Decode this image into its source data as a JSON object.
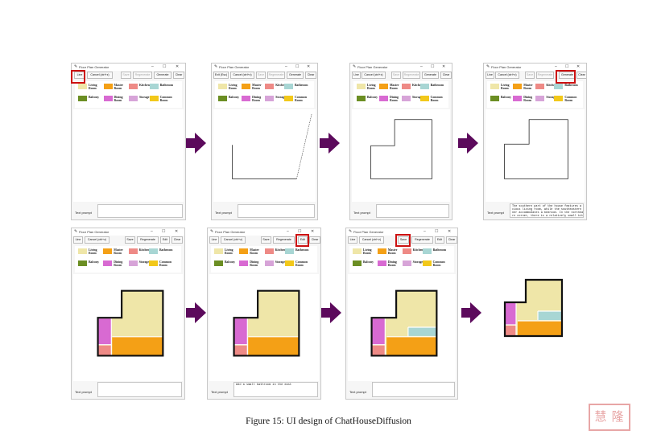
{
  "app": {
    "title": "Floor Plan Generator",
    "controls": {
      "minimize": "–",
      "maximize": "☐",
      "close": "✕"
    },
    "prompt_label": "Text prompt"
  },
  "legend": [
    {
      "label": "Living Room",
      "color": "#efe6a8"
    },
    {
      "label": "Master Room",
      "color": "#f4a016"
    },
    {
      "label": "Kitchen",
      "color": "#ee8a86"
    },
    {
      "label": "Bathroom",
      "color": "#a8d6d4"
    },
    {
      "label": "Balcony",
      "color": "#6b8e23"
    },
    {
      "label": "Dining Room",
      "color": "#d86ad2"
    },
    {
      "label": "Storage",
      "color": "#d7a4d8"
    },
    {
      "label": "Common Room",
      "color": "#f2c81a"
    }
  ],
  "toolbar_labels": {
    "line": "Line",
    "exit_box": "Exit (Esc)",
    "cancel": "Cancel (ctrl+z)",
    "save": "Save",
    "regenerate": "Regenerate",
    "generate": "Generate",
    "edit": "Edit",
    "clear": "Clear"
  },
  "prompts": {
    "p4": "The southern part of the house features a spa\ncious living room, while the southeastern cor\nner accommodates a bedroom. In the northeaste\nrn corner, there is a relatively small kitche",
    "p6": "Add a small bathroom in the east"
  },
  "caption": "Figure 15: UI design of ChatHouseDiffusion",
  "stamp_text": "慧 隆",
  "colors": {
    "arrow": "#5c0a5c",
    "highlight": "#cc1111"
  }
}
